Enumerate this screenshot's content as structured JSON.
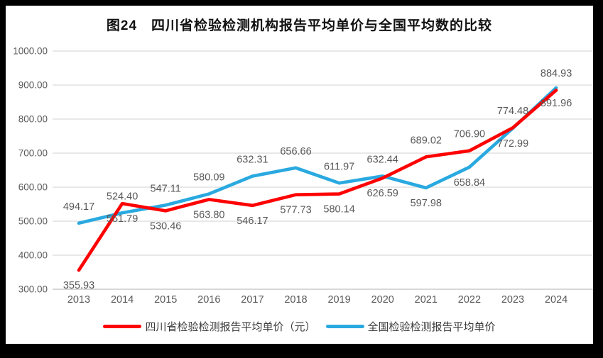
{
  "title": "图24　四川省检验检测机构报告平均单价与全国平均数的比较",
  "chart_data": {
    "type": "line",
    "categories": [
      "2013",
      "2014",
      "2015",
      "2016",
      "2017",
      "2018",
      "2019",
      "2020",
      "2021",
      "2022",
      "2023",
      "2024"
    ],
    "ylim": [
      300,
      1000
    ],
    "yticks": [
      "1000.00",
      "900.00",
      "800.00",
      "700.00",
      "600.00",
      "500.00",
      "400.00",
      "300.00"
    ],
    "grid": true,
    "legend_position": "bottom",
    "colors": {
      "grid": "#D9D9D9",
      "axis": "#BFBFBF",
      "tick_text": "#595959",
      "data_label_text": "#595959"
    },
    "series": [
      {
        "name": "四川省检验检测报告平均单价（元）",
        "color": "#FE0000",
        "z": 2,
        "values": [
          355.93,
          551.79,
          530.46,
          563.8,
          546.17,
          577.73,
          580.14,
          626.59,
          689.02,
          706.9,
          774.48,
          884.93
        ],
        "label_positions": [
          "below",
          "below",
          "below",
          "below",
          "below",
          "below",
          "below",
          "below",
          "above",
          "above",
          "above",
          "above"
        ]
      },
      {
        "name": "全国检验检测报告平均单价",
        "color": "#29A9E0",
        "z": 1,
        "values": [
          494.17,
          524.4,
          547.11,
          580.09,
          632.31,
          656.66,
          611.97,
          632.44,
          597.98,
          658.84,
          772.99,
          891.96
        ],
        "label_positions": [
          "above",
          "above",
          "above",
          "above",
          "above",
          "above",
          "above",
          "above",
          "below",
          "below",
          "below",
          "below"
        ]
      }
    ]
  }
}
